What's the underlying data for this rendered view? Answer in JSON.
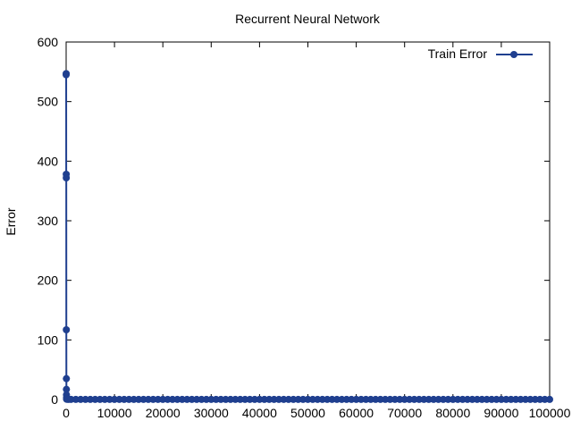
{
  "chart_data": {
    "type": "line",
    "title": "Recurrent Neural Network",
    "xlabel": "",
    "ylabel": "Error",
    "xlim": [
      0,
      100000
    ],
    "ylim": [
      0,
      600
    ],
    "x_ticks": [
      0,
      10000,
      20000,
      30000,
      40000,
      50000,
      60000,
      70000,
      80000,
      90000,
      100000
    ],
    "y_ticks": [
      0,
      100,
      200,
      300,
      400,
      500,
      600
    ],
    "legend": "top-right",
    "grid": false,
    "series": [
      {
        "name": "Train Error",
        "color": "#1f3f8f",
        "marker": "circle",
        "points": [
          [
            0,
            545
          ],
          [
            10,
            547
          ],
          [
            20,
            378
          ],
          [
            30,
            372
          ],
          [
            40,
            117
          ],
          [
            50,
            35
          ],
          [
            60,
            17
          ],
          [
            70,
            8
          ],
          [
            80,
            3
          ],
          [
            90,
            1
          ],
          [
            100,
            0.5
          ],
          [
            200,
            0.3
          ],
          [
            500,
            0.2
          ],
          [
            1000,
            0.2
          ],
          [
            2000,
            0.15
          ],
          [
            3000,
            0.15
          ],
          [
            4000,
            0.12
          ],
          [
            5000,
            0.12
          ],
          [
            6000,
            0.1
          ],
          [
            7000,
            0.1
          ],
          [
            8000,
            0.1
          ],
          [
            9000,
            0.1
          ],
          [
            10000,
            0.1
          ],
          [
            11000,
            0.1
          ],
          [
            12000,
            0.1
          ],
          [
            13000,
            0.1
          ],
          [
            14000,
            0.1
          ],
          [
            15000,
            0.1
          ],
          [
            16000,
            0.1
          ],
          [
            17000,
            0.1
          ],
          [
            18000,
            0.1
          ],
          [
            19000,
            0.1
          ],
          [
            20000,
            0.1
          ],
          [
            21000,
            0.1
          ],
          [
            22000,
            0.1
          ],
          [
            23000,
            0.1
          ],
          [
            24000,
            0.1
          ],
          [
            25000,
            0.1
          ],
          [
            26000,
            0.1
          ],
          [
            27000,
            0.1
          ],
          [
            28000,
            0.1
          ],
          [
            29000,
            0.1
          ],
          [
            30000,
            0.1
          ],
          [
            31000,
            0.1
          ],
          [
            32000,
            0.1
          ],
          [
            33000,
            0.1
          ],
          [
            34000,
            0.1
          ],
          [
            35000,
            0.1
          ],
          [
            36000,
            0.1
          ],
          [
            37000,
            0.1
          ],
          [
            38000,
            0.1
          ],
          [
            39000,
            0.1
          ],
          [
            40000,
            0.1
          ],
          [
            41000,
            0.1
          ],
          [
            42000,
            0.1
          ],
          [
            43000,
            0.1
          ],
          [
            44000,
            0.1
          ],
          [
            45000,
            0.1
          ],
          [
            46000,
            0.1
          ],
          [
            47000,
            0.1
          ],
          [
            48000,
            0.1
          ],
          [
            49000,
            0.1
          ],
          [
            50000,
            0.1
          ],
          [
            51000,
            0.1
          ],
          [
            52000,
            0.1
          ],
          [
            53000,
            0.1
          ],
          [
            54000,
            0.1
          ],
          [
            55000,
            0.1
          ],
          [
            56000,
            0.1
          ],
          [
            57000,
            0.1
          ],
          [
            58000,
            0.1
          ],
          [
            59000,
            0.1
          ],
          [
            60000,
            0.1
          ],
          [
            61000,
            0.1
          ],
          [
            62000,
            0.1
          ],
          [
            63000,
            0.1
          ],
          [
            64000,
            0.1
          ],
          [
            65000,
            0.1
          ],
          [
            66000,
            0.1
          ],
          [
            67000,
            0.1
          ],
          [
            68000,
            0.1
          ],
          [
            69000,
            0.1
          ],
          [
            70000,
            0.1
          ],
          [
            71000,
            0.1
          ],
          [
            72000,
            0.1
          ],
          [
            73000,
            0.1
          ],
          [
            74000,
            0.1
          ],
          [
            75000,
            0.1
          ],
          [
            76000,
            0.1
          ],
          [
            77000,
            0.1
          ],
          [
            78000,
            0.1
          ],
          [
            79000,
            0.1
          ],
          [
            80000,
            0.1
          ],
          [
            81000,
            0.1
          ],
          [
            82000,
            0.1
          ],
          [
            83000,
            0.1
          ],
          [
            84000,
            0.1
          ],
          [
            85000,
            0.1
          ],
          [
            86000,
            0.1
          ],
          [
            87000,
            0.1
          ],
          [
            88000,
            0.1
          ],
          [
            89000,
            0.1
          ],
          [
            90000,
            0.1
          ],
          [
            91000,
            0.1
          ],
          [
            92000,
            0.1
          ],
          [
            93000,
            0.1
          ],
          [
            94000,
            0.1
          ],
          [
            95000,
            0.1
          ],
          [
            96000,
            0.1
          ],
          [
            97000,
            0.1
          ],
          [
            98000,
            0.1
          ],
          [
            99000,
            0.1
          ],
          [
            100000,
            0.1
          ]
        ]
      }
    ]
  }
}
